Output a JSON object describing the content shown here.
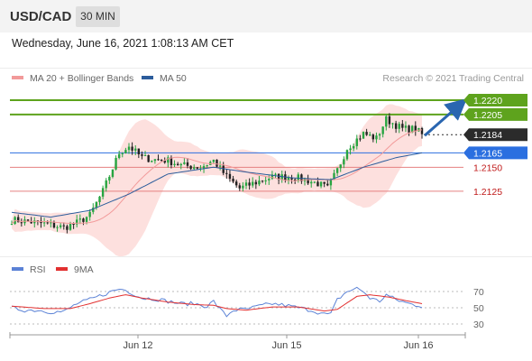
{
  "header": {
    "symbol": "USD/CAD",
    "interval": "30 MIN"
  },
  "datetime": "Wednesday, June 16, 2021 1:08:13 AM CET",
  "colors": {
    "ma20": "#f29a9a",
    "ma50": "#2c5d9c",
    "band_fill": "#fde0de",
    "up_candle": "#27a541",
    "down_candle": "#222222",
    "target": "#5ea31d",
    "current": "#2b2b2b",
    "pivot": "#2b6fe0",
    "support": "#e58080",
    "rsi": "#5b82d6",
    "rsi_ma": "#e23030",
    "arrow": "#2a66b0"
  },
  "chart_data": [
    {
      "type": "candlestick",
      "legend": [
        {
          "label": "MA 20 + Bollinger Bands",
          "color": "#f29a9a"
        },
        {
          "label": "MA 50",
          "color": "#2c5d9c"
        }
      ],
      "watermark": "Research © 2021 Trading Central",
      "x_labels": [
        "Jun 12",
        "Jun 15",
        "Jun 16"
      ],
      "ylim": [
        1.2075,
        1.2235
      ],
      "levels": [
        {
          "value": 1.222,
          "label": "1.2220",
          "kind": "target"
        },
        {
          "value": 1.2205,
          "label": "1.2205",
          "kind": "target"
        },
        {
          "value": 1.2184,
          "label": "1.2184",
          "kind": "current"
        },
        {
          "value": 1.2165,
          "label": "1.2165",
          "kind": "pivot"
        },
        {
          "value": 1.215,
          "label": "1.2150",
          "kind": "support"
        },
        {
          "value": 1.2125,
          "label": "1.2125",
          "kind": "support"
        }
      ],
      "close_anchors": [
        [
          0,
          1.2095
        ],
        [
          6,
          1.2093
        ],
        [
          12,
          1.209
        ],
        [
          16,
          1.2087
        ],
        [
          20,
          1.2092
        ],
        [
          24,
          1.21
        ],
        [
          28,
          1.2125
        ],
        [
          33,
          1.2165
        ],
        [
          36,
          1.2172
        ],
        [
          40,
          1.216
        ],
        [
          44,
          1.2158
        ],
        [
          48,
          1.2157
        ],
        [
          52,
          1.2152
        ],
        [
          58,
          1.215
        ],
        [
          62,
          1.2157
        ],
        [
          66,
          1.214
        ],
        [
          70,
          1.2128
        ],
        [
          74,
          1.2133
        ],
        [
          80,
          1.214
        ],
        [
          86,
          1.214
        ],
        [
          90,
          1.2137
        ],
        [
          94,
          1.2133
        ],
        [
          97,
          1.2128
        ],
        [
          100,
          1.2147
        ],
        [
          103,
          1.217
        ],
        [
          108,
          1.2185
        ],
        [
          112,
          1.218
        ],
        [
          115,
          1.22
        ],
        [
          120,
          1.219
        ],
        [
          124,
          1.219
        ],
        [
          126,
          1.2184
        ]
      ],
      "ma50_anchors": [
        [
          0,
          1.2103
        ],
        [
          12,
          1.2098
        ],
        [
          24,
          1.2105
        ],
        [
          36,
          1.2122
        ],
        [
          48,
          1.2143
        ],
        [
          62,
          1.215
        ],
        [
          72,
          1.2145
        ],
        [
          86,
          1.2139
        ],
        [
          98,
          1.2137
        ],
        [
          108,
          1.215
        ],
        [
          118,
          1.216
        ],
        [
          126,
          1.2165
        ]
      ],
      "forecast_arrow": {
        "from": 1.2184,
        "to": 1.222
      }
    },
    {
      "type": "line",
      "legend": [
        {
          "label": "RSI",
          "color": "#5b82d6"
        },
        {
          "label": "9MA",
          "color": "#e23030"
        }
      ],
      "yticks": [
        70,
        50,
        30
      ],
      "ylim": [
        20,
        80
      ],
      "rsi_anchors": [
        [
          0,
          50
        ],
        [
          4,
          47
        ],
        [
          8,
          47
        ],
        [
          12,
          45
        ],
        [
          16,
          45
        ],
        [
          20,
          55
        ],
        [
          24,
          60
        ],
        [
          28,
          66
        ],
        [
          32,
          72
        ],
        [
          34,
          73
        ],
        [
          37,
          68
        ],
        [
          40,
          62
        ],
        [
          44,
          61
        ],
        [
          48,
          58
        ],
        [
          52,
          55
        ],
        [
          56,
          55
        ],
        [
          60,
          52
        ],
        [
          62,
          58
        ],
        [
          64,
          48
        ],
        [
          66,
          40
        ],
        [
          68,
          47
        ],
        [
          72,
          48
        ],
        [
          76,
          52
        ],
        [
          80,
          55
        ],
        [
          84,
          53
        ],
        [
          88,
          50
        ],
        [
          92,
          47
        ],
        [
          96,
          42
        ],
        [
          98,
          42
        ],
        [
          100,
          60
        ],
        [
          103,
          70
        ],
        [
          106,
          74
        ],
        [
          108,
          70
        ],
        [
          110,
          62
        ],
        [
          113,
          58
        ],
        [
          115,
          66
        ],
        [
          118,
          60
        ],
        [
          122,
          55
        ],
        [
          126,
          52
        ]
      ],
      "ma_anchors": [
        [
          0,
          52
        ],
        [
          10,
          49
        ],
        [
          18,
          49
        ],
        [
          24,
          55
        ],
        [
          30,
          62
        ],
        [
          35,
          66
        ],
        [
          40,
          62
        ],
        [
          48,
          57
        ],
        [
          56,
          54
        ],
        [
          62,
          53
        ],
        [
          66,
          49
        ],
        [
          72,
          47
        ],
        [
          80,
          51
        ],
        [
          88,
          51
        ],
        [
          96,
          46
        ],
        [
          100,
          48
        ],
        [
          106,
          64
        ],
        [
          110,
          66
        ],
        [
          116,
          63
        ],
        [
          122,
          58
        ],
        [
          126,
          55
        ]
      ]
    }
  ]
}
